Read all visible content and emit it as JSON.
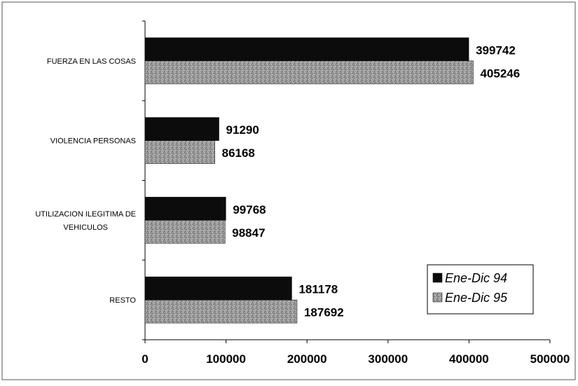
{
  "chart_data": {
    "type": "bar",
    "orientation": "horizontal",
    "categories": [
      "FUERZA EN LAS COSAS",
      "VIOLENCIA PERSONAS",
      "UTILIZACION ILEGITIMA DE VEHICULOS",
      "RESTO"
    ],
    "category_lines": [
      [
        "FUERZA EN LAS COSAS"
      ],
      [
        "VIOLENCIA PERSONAS"
      ],
      [
        "UTILIZACION ILEGITIMA DE",
        "VEHICULOS"
      ],
      [
        "RESTO"
      ]
    ],
    "series": [
      {
        "name": "Ene-Dic 94",
        "values": [
          399742,
          91290,
          99768,
          181178
        ],
        "color": "#0c0c0c",
        "pattern": "solid"
      },
      {
        "name": "Ene-Dic 95",
        "values": [
          405246,
          86168,
          98847,
          187692
        ],
        "color": "#8a8a8a",
        "pattern": "stipple"
      }
    ],
    "xlim": [
      0,
      500000
    ],
    "xticks": [
      0,
      100000,
      200000,
      300000,
      400000,
      500000
    ],
    "title": "",
    "xlabel": "",
    "ylabel": "",
    "grid": false,
    "legend_position": "bottom-right",
    "data_labels": true
  }
}
